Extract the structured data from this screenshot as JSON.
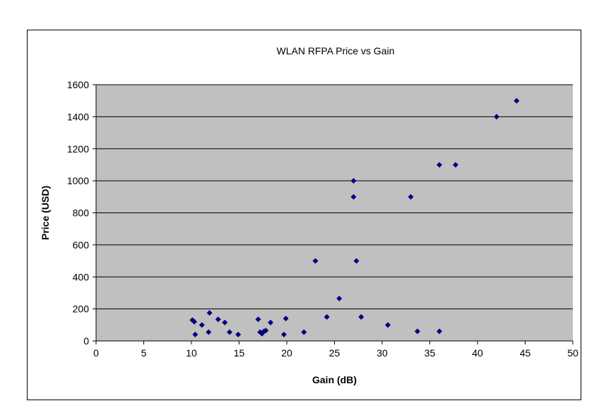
{
  "chart_data": {
    "type": "scatter",
    "title": "WLAN RFPA Price vs Gain",
    "xlabel": "Gain (dB)",
    "ylabel": "Price (USD)",
    "xlim": [
      0,
      50
    ],
    "ylim": [
      0,
      1600
    ],
    "x_ticks": [
      "0",
      "5",
      "10",
      "15",
      "20",
      "25",
      "30",
      "35",
      "40",
      "45",
      "50"
    ],
    "y_ticks": [
      "0",
      "200",
      "400",
      "600",
      "800",
      "1000",
      "1200",
      "1400",
      "1600"
    ],
    "grid": "horizontal",
    "legend": "none",
    "plot_background": "#c0c0c0",
    "marker_color": "#000080",
    "marker": "diamond",
    "points": [
      [
        10.1,
        130
      ],
      [
        10.3,
        120
      ],
      [
        10.4,
        40
      ],
      [
        11.1,
        100
      ],
      [
        11.8,
        55
      ],
      [
        11.9,
        175
      ],
      [
        12.8,
        135
      ],
      [
        13.5,
        115
      ],
      [
        14.0,
        55
      ],
      [
        14.9,
        40
      ],
      [
        17.0,
        135
      ],
      [
        17.2,
        55
      ],
      [
        17.4,
        45
      ],
      [
        17.6,
        60
      ],
      [
        17.8,
        65
      ],
      [
        18.3,
        115
      ],
      [
        19.7,
        40
      ],
      [
        19.9,
        140
      ],
      [
        21.8,
        55
      ],
      [
        23.0,
        500
      ],
      [
        24.2,
        150
      ],
      [
        25.5,
        265
      ],
      [
        27.0,
        1000
      ],
      [
        27.0,
        900
      ],
      [
        27.3,
        500
      ],
      [
        27.8,
        150
      ],
      [
        30.6,
        100
      ],
      [
        33.0,
        900
      ],
      [
        33.7,
        60
      ],
      [
        36.0,
        1100
      ],
      [
        36.0,
        60
      ],
      [
        37.7,
        1100
      ],
      [
        42.0,
        1400
      ],
      [
        44.1,
        1500
      ]
    ]
  }
}
